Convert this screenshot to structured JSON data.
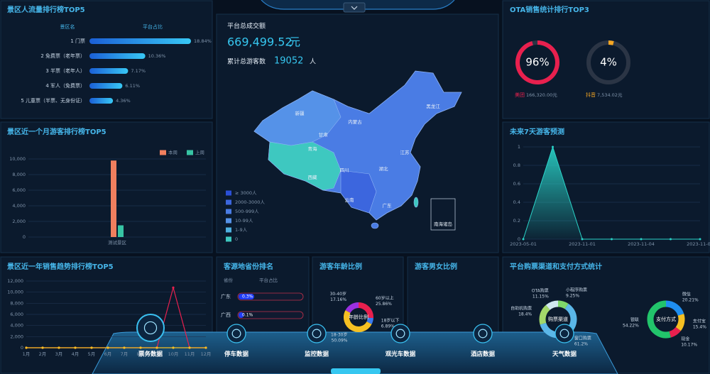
{
  "chart_data": [
    {
      "type": "bar",
      "orientation": "horizontal",
      "title": "景区人流量排行榜TOP5",
      "column_headers": [
        "景区名",
        "平台占比"
      ],
      "categories": [
        "1 门票",
        "2 免费票（老年票）",
        "3 半票（老年人）",
        "4 军人（免费票）",
        "5 儿童票（半票、无身份证）"
      ],
      "values": [
        18.84,
        10.36,
        7.17,
        6.11,
        4.36
      ],
      "value_labels": [
        "18.84%",
        "10.36%",
        "7.17%",
        "6.11%",
        "4.36%"
      ],
      "color": "#2e8ff0"
    },
    {
      "type": "bar",
      "title": "景区近一个月游客排行榜TOP5",
      "categories": [
        "测试景区"
      ],
      "series": [
        {
          "name": "本周",
          "color": "#f07f5e",
          "values": [
            9800
          ]
        },
        {
          "name": "上周",
          "color": "#37c4a4",
          "values": [
            1500
          ]
        }
      ],
      "ylim": [
        0,
        10000
      ],
      "yticks": [
        0,
        {
          "value": 2000,
          "label": "2,000"
        },
        {
          "value": 4000,
          "label": "4,000"
        },
        {
          "value": 6000,
          "label": "6,000"
        },
        {
          "value": 8000,
          "label": "8,000"
        },
        {
          "value": 10000,
          "label": "10,000"
        }
      ],
      "grid": true
    },
    {
      "type": "line",
      "title": "景区近一年销售趋势排行榜TOP5",
      "categories": [
        "1月",
        "2月",
        "3月",
        "4月",
        "5月",
        "6月",
        "7月",
        "8月",
        "9月",
        "10月",
        "11月",
        "12月"
      ],
      "series": [
        {
          "color": "#e8204e",
          "values": [
            0,
            0,
            0,
            0,
            0,
            0,
            0,
            0,
            0,
            10800,
            0,
            0
          ]
        },
        {
          "color": "#f5c022",
          "values": [
            0,
            0,
            0,
            0,
            0,
            0,
            0,
            0,
            0,
            0,
            0,
            0
          ]
        }
      ],
      "ylim": [
        0,
        12000
      ],
      "yticks": [
        0,
        {
          "value": 2000,
          "label": "2,000"
        },
        {
          "value": 4000,
          "label": "4,000"
        },
        {
          "value": 6000,
          "label": "6,000"
        },
        {
          "value": 8000,
          "label": "8,000"
        },
        {
          "value": 10000,
          "label": "10,000"
        },
        {
          "value": 12000,
          "label": "12,000"
        }
      ],
      "grid": true
    },
    {
      "type": "gauge",
      "title": "OTA销售统计排行TOP3",
      "categories": [
        "美团",
        "抖音"
      ],
      "values": [
        96,
        4
      ],
      "value_labels": [
        "96%",
        "4%"
      ],
      "amounts": [
        "166,320.00元",
        "7,534.02元"
      ],
      "colors": [
        "#e8204e",
        "#f5a623"
      ]
    },
    {
      "type": "area",
      "title": "未来7天游客预测",
      "categories": [
        "2023-05-01",
        null,
        "2023-11-01",
        null,
        "2023-11-04",
        null,
        "2023-11-05"
      ],
      "values": [
        0,
        1,
        0,
        0,
        0,
        0,
        0
      ],
      "ylim": [
        0,
        1
      ],
      "yticks": [
        0,
        0.2,
        0.4,
        0.6,
        0.8,
        1
      ],
      "color": "#2ad4c9",
      "grid": true
    },
    {
      "type": "progress",
      "title": "客源地省份排名",
      "column_headers": [
        "省份",
        "平台占比"
      ],
      "categories": [
        "广东",
        "广西"
      ],
      "values": [
        0.3,
        0.1
      ],
      "value_labels": [
        "0.3%",
        "0.1%"
      ],
      "color": "#1f3cf5"
    },
    {
      "type": "pie",
      "title": "游客年龄比例",
      "center_label": "年龄比例",
      "categories": [
        "60岁以上",
        "18岁以下",
        "18-30岁",
        "30-40岁"
      ],
      "values": [
        25.86,
        6.89,
        50.09,
        17.16
      ],
      "value_labels": [
        "25.86%",
        "6.89%",
        "50.09%",
        "17.16%"
      ],
      "colors": [
        "#e8204e",
        "#3a7bf0",
        "#f5c022",
        "#9b30e0"
      ]
    },
    {
      "type": "pie",
      "title": "游客男女比例"
    },
    {
      "type": "pie",
      "title": "平台购票渠道和支付方式统计",
      "center_label": "购票渠道",
      "categories": [
        "小程序购票",
        "窗口购票",
        "自助机购票",
        "OTA购票"
      ],
      "values": [
        9.25,
        61.2,
        18.4,
        11.15
      ],
      "value_labels": [
        "9.25%",
        "61.2%",
        "18.4%",
        "11.15%"
      ],
      "colors": [
        "#7fd86a",
        "#5bb7e8",
        "#a3d86a",
        "#d0e8f0"
      ]
    },
    {
      "type": "pie",
      "center_label": "支付方式",
      "categories": [
        "微信",
        "支付宝",
        "现金",
        "银联"
      ],
      "values": [
        20.21,
        15.4,
        10.17,
        54.22
      ],
      "value_labels": [
        "20.21%",
        "15.4%",
        "10.17%",
        "54.22%"
      ],
      "colors": [
        "#1f8ef0",
        "#f5c022",
        "#e8204e",
        "#22c46b"
      ]
    }
  ],
  "summary": {
    "sales_label": "平台总成交额",
    "sales": "669,499.52",
    "sales_unit": "元",
    "visitors_label": "累计总游客数",
    "visitors": 19052,
    "visitors_unit": "人"
  },
  "map": {
    "labels": [
      "新疆",
      "西藏",
      "青海",
      "内蒙古",
      "黑龙江",
      "四川",
      "云南",
      "广东",
      "甘肃",
      "湖北",
      "江苏",
      "南海诸岛"
    ],
    "legend": [
      {
        "label": "≥ 3000人",
        "color": "#2a4fd6"
      },
      {
        "label": "2000-3000人",
        "color": "#3c66de"
      },
      {
        "label": "500-999人",
        "color": "#4a7ce4"
      },
      {
        "label": "10-99人",
        "color": "#5592e8"
      },
      {
        "label": "1-9人",
        "color": "#4eb0e0"
      },
      {
        "label": "0",
        "color": "#3ec8c0"
      }
    ]
  },
  "nav": [
    "票务数据",
    "停车数据",
    "监控数据",
    "观光车数据",
    "酒店数据",
    "天气数据"
  ]
}
